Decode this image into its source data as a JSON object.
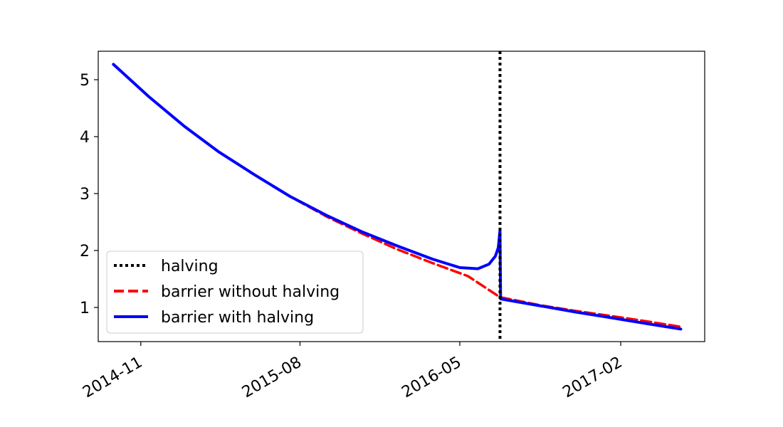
{
  "chart_data": {
    "type": "line",
    "title": "",
    "xlabel": "",
    "ylabel": "",
    "x_range": [
      "2014-08-20",
      "2017-06-25"
    ],
    "ylim": [
      0.4,
      5.5
    ],
    "grid": false,
    "legend_position": "lower-left",
    "x_ticks": [
      "2014-11",
      "2015-08",
      "2016-05",
      "2017-02"
    ],
    "y_ticks": [
      1,
      2,
      3,
      4,
      5
    ],
    "vline": {
      "name": "halving",
      "x": "2016-07-09",
      "color": "#000000",
      "style": "dotted"
    },
    "series": [
      {
        "name": "barrier without halving",
        "color": "#ff0000",
        "style": "dashed",
        "points": [
          [
            "2014-09-15",
            5.27
          ],
          [
            "2014-11-15",
            4.7
          ],
          [
            "2015-01-15",
            4.18
          ],
          [
            "2015-03-15",
            3.73
          ],
          [
            "2015-05-15",
            3.33
          ],
          [
            "2015-07-15",
            2.95
          ],
          [
            "2015-09-15",
            2.6
          ],
          [
            "2015-11-15",
            2.3
          ],
          [
            "2016-01-15",
            2.02
          ],
          [
            "2016-03-15",
            1.78
          ],
          [
            "2016-05-15",
            1.55
          ],
          [
            "2016-07-09",
            1.18
          ],
          [
            "2016-09-15",
            1.04
          ],
          [
            "2016-11-15",
            0.94
          ],
          [
            "2017-01-15",
            0.85
          ],
          [
            "2017-03-15",
            0.76
          ],
          [
            "2017-05-15",
            0.66
          ]
        ]
      },
      {
        "name": "barrier with halving",
        "color": "#0000ff",
        "style": "solid",
        "points": [
          [
            "2014-09-15",
            5.27
          ],
          [
            "2014-11-15",
            4.7
          ],
          [
            "2015-01-15",
            4.18
          ],
          [
            "2015-03-15",
            3.73
          ],
          [
            "2015-05-15",
            3.33
          ],
          [
            "2015-07-15",
            2.95
          ],
          [
            "2015-09-15",
            2.62
          ],
          [
            "2015-11-15",
            2.33
          ],
          [
            "2016-01-15",
            2.08
          ],
          [
            "2016-03-15",
            1.85
          ],
          [
            "2016-05-01",
            1.7
          ],
          [
            "2016-06-01",
            1.68
          ],
          [
            "2016-06-20",
            1.76
          ],
          [
            "2016-07-01",
            1.9
          ],
          [
            "2016-07-06",
            2.05
          ],
          [
            "2016-07-09",
            2.35
          ],
          [
            "2016-07-10",
            1.15
          ],
          [
            "2016-09-15",
            1.03
          ],
          [
            "2016-11-15",
            0.92
          ],
          [
            "2017-01-15",
            0.82
          ],
          [
            "2017-03-15",
            0.72
          ],
          [
            "2017-05-15",
            0.62
          ]
        ]
      }
    ]
  }
}
